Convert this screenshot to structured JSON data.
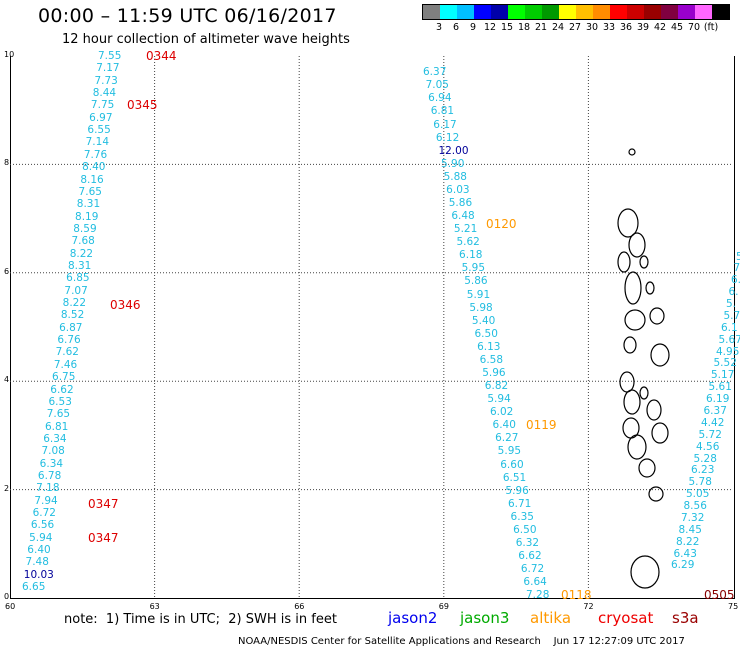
{
  "title": "00:00 – 11:59 UTC 06/16/2017",
  "subtitle": "12 hour collection of altimeter wave heights",
  "colorbar": {
    "colors": [
      "#7f7f7f",
      "#00ffff",
      "#00bfff",
      "#0000ff",
      "#0000aa",
      "#00ff00",
      "#00cc00",
      "#009900",
      "#ffff00",
      "#ffbf00",
      "#ff8c00",
      "#ff0000",
      "#cc0000",
      "#990000",
      "#800040",
      "#9900cc",
      "#ff66ff",
      "#000000"
    ],
    "labels": [
      "3",
      "6",
      "9",
      "12",
      "15",
      "18",
      "21",
      "24",
      "27",
      "30",
      "33",
      "36",
      "39",
      "42",
      "45",
      "70",
      "(ft)"
    ]
  },
  "axes": {
    "x_ticks": [
      "60",
      "63",
      "66",
      "69",
      "72",
      "75"
    ],
    "y_ticks": [
      "0",
      "2",
      "4",
      "6",
      "8",
      "10"
    ]
  },
  "tracks": [
    {
      "satellite": "cryosat",
      "times": [
        {
          "text": "0344",
          "lat": 10.0
        },
        {
          "text": "0345",
          "lat": 9.1
        },
        {
          "text": "0346",
          "lat": 5.4
        },
        {
          "text": "0347",
          "lat": 1.73
        },
        {
          "text": "0347",
          "lat": 1.1
        }
      ],
      "values": [
        "7.55",
        "7.17",
        "7.73",
        "8.44",
        "7.75",
        "6.97",
        "6.55",
        "7.14",
        "7.76",
        "8.40",
        "8.16",
        "7.65",
        "8.31",
        "8.19",
        "8.59",
        "7.68",
        "8.22",
        "8.31",
        "6.85",
        "7.07",
        "8.22",
        "8.52",
        "6.87",
        "6.76",
        "7.62",
        "7.46",
        "6.75",
        "6.62",
        "6.53",
        "7.65",
        "6.81",
        "6.34",
        "7.08",
        "6.34",
        "6.78",
        "7.18",
        "7.94",
        "6.72",
        "6.56",
        "5.94",
        "6.40",
        "7.48",
        "10.03",
        "6.65"
      ]
    },
    {
      "satellite": "altika",
      "times": [
        {
          "text": "0120",
          "lat": 6.9
        },
        {
          "text": "0119",
          "lat": 3.2
        },
        {
          "text": "0118",
          "lat": 0.05
        }
      ],
      "values": [
        "6.37",
        "7.05",
        "6.94",
        "6.81",
        "6.17",
        "6.12",
        "12.00",
        "5.90",
        "5.88",
        "6.03",
        "5.86",
        "6.48",
        "5.21",
        "5.62",
        "6.18",
        "5.95",
        "5.86",
        "5.91",
        "5.98",
        "5.40",
        "6.50",
        "6.13",
        "6.58",
        "5.96",
        "6.82",
        "5.94",
        "6.02",
        "6.40",
        "6.27",
        "5.95",
        "6.60",
        "6.51",
        "5.96",
        "6.71",
        "6.35",
        "6.50",
        "6.32",
        "6.62",
        "6.72",
        "6.64",
        "7.28"
      ]
    },
    {
      "satellite": "s3a",
      "times": [
        {
          "text": "0505",
          "lat": 0.05
        }
      ],
      "values": [
        "5.",
        "7.",
        "6.",
        "6.",
        "5.",
        "5.7",
        "6.1",
        "5.67",
        "4.95",
        "5.52",
        "5.17",
        "5.61",
        "6.19",
        "6.37",
        "4.42",
        "5.72",
        "4.56",
        "5.28",
        "6.23",
        "5.78",
        "5.05",
        "8.56",
        "7.32",
        "8.45",
        "8.22",
        "6.43",
        "6.29"
      ]
    }
  ],
  "legend": [
    {
      "name": "jason2",
      "color": "#0000ee"
    },
    {
      "name": "jason3",
      "color": "#00aa00"
    },
    {
      "name": "altika",
      "color": "#ff9900"
    },
    {
      "name": "cryosat",
      "color": "#ee0000"
    },
    {
      "name": "s3a",
      "color": "#990000"
    }
  ],
  "note": "note:  1) Time is in UTC;  2) SWH is in feet",
  "credit": "NOAA/NESDIS Center for Satellite Applications and Research    Jun 17 12:27:09 UTC 2017"
}
